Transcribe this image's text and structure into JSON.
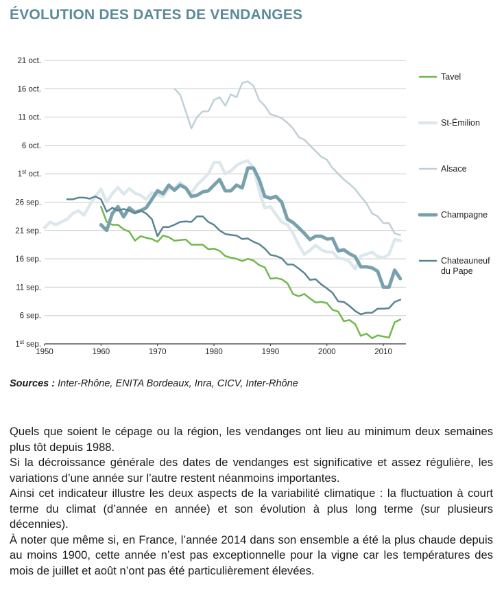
{
  "title": "ÉVOLUTION DES DATES DE VENDANGES",
  "chart_data": {
    "type": "line",
    "title": "ÉVOLUTION DES DATES DE VENDANGES",
    "xlabel": "",
    "ylabel": "",
    "xlim": [
      1950,
      2014
    ],
    "ylim": [
      1,
      51
    ],
    "x_ticks": [
      1950,
      1960,
      1970,
      1980,
      1990,
      2000,
      2010
    ],
    "y_ticks": [
      {
        "value": 1,
        "label": "1",
        "sup": "st",
        "rest": " sep."
      },
      {
        "value": 6,
        "label": "6 sep."
      },
      {
        "value": 11,
        "label": "11 sep."
      },
      {
        "value": 16,
        "label": "16 sep."
      },
      {
        "value": 21,
        "label": "21 sep."
      },
      {
        "value": 26,
        "label": "26 sep."
      },
      {
        "value": 31,
        "label": "1",
        "sup": "st",
        "rest": " oct."
      },
      {
        "value": 36,
        "label": "6 oct."
      },
      {
        "value": 41,
        "label": "11 oct."
      },
      {
        "value": 46,
        "label": "16 oct."
      },
      {
        "value": 51,
        "label": "21 oct."
      }
    ],
    "series": [
      {
        "name": "Tavel",
        "color": "#6fb84b",
        "width": 2.5,
        "points": [
          [
            1960,
            25.2
          ],
          [
            1961,
            22.5
          ],
          [
            1962,
            22
          ],
          [
            1963,
            22
          ],
          [
            1964,
            21.2
          ],
          [
            1965,
            20.8
          ],
          [
            1966,
            19.2
          ],
          [
            1967,
            20
          ],
          [
            1968,
            19.7
          ],
          [
            1969,
            19.5
          ],
          [
            1970,
            19
          ],
          [
            1971,
            20.1
          ],
          [
            1972,
            19.8
          ],
          [
            1973,
            19.2
          ],
          [
            1974,
            19.3
          ],
          [
            1975,
            19.4
          ],
          [
            1976,
            18.5
          ],
          [
            1977,
            18.5
          ],
          [
            1978,
            18.5
          ],
          [
            1979,
            17.7
          ],
          [
            1980,
            17.8
          ],
          [
            1981,
            17.4
          ],
          [
            1982,
            16.5
          ],
          [
            1983,
            16.2
          ],
          [
            1984,
            16
          ],
          [
            1985,
            15.6
          ],
          [
            1986,
            16
          ],
          [
            1987,
            15.7
          ],
          [
            1988,
            14.9
          ],
          [
            1989,
            14.5
          ],
          [
            1990,
            12.5
          ],
          [
            1991,
            12.6
          ],
          [
            1992,
            12.4
          ],
          [
            1993,
            11.7
          ],
          [
            1994,
            9.8
          ],
          [
            1995,
            9.4
          ],
          [
            1996,
            9.8
          ],
          [
            1997,
            9
          ],
          [
            1998,
            8.3
          ],
          [
            1999,
            8.4
          ],
          [
            2000,
            8.2
          ],
          [
            2001,
            7
          ],
          [
            2002,
            6.7
          ],
          [
            2003,
            5
          ],
          [
            2004,
            5.2
          ],
          [
            2005,
            4.5
          ],
          [
            2006,
            2.4
          ],
          [
            2007,
            2.8
          ],
          [
            2008,
            2
          ],
          [
            2009,
            2.5
          ],
          [
            2010,
            2.3
          ],
          [
            2011,
            2.1
          ],
          [
            2012,
            4.8
          ],
          [
            2013,
            5.3
          ]
        ]
      },
      {
        "name": "St-Émilion",
        "color": "#dde8ec",
        "width": 4.5,
        "points": [
          [
            1950,
            21.5
          ],
          [
            1951,
            22.5
          ],
          [
            1952,
            22
          ],
          [
            1953,
            22.5
          ],
          [
            1954,
            23
          ],
          [
            1955,
            24
          ],
          [
            1956,
            24.5
          ],
          [
            1957,
            23.7
          ],
          [
            1958,
            25.5
          ],
          [
            1959,
            27
          ],
          [
            1960,
            28.3
          ],
          [
            1961,
            26
          ],
          [
            1962,
            27.5
          ],
          [
            1963,
            28.6
          ],
          [
            1964,
            27.4
          ],
          [
            1965,
            28.4
          ],
          [
            1966,
            27.6
          ],
          [
            1967,
            27.2
          ],
          [
            1968,
            26.5
          ],
          [
            1969,
            27.7
          ],
          [
            1970,
            27.3
          ],
          [
            1971,
            27
          ],
          [
            1972,
            28.4
          ],
          [
            1973,
            28.4
          ],
          [
            1974,
            29.5
          ],
          [
            1975,
            28.5
          ],
          [
            1976,
            27.6
          ],
          [
            1977,
            29
          ],
          [
            1978,
            30
          ],
          [
            1979,
            31
          ],
          [
            1980,
            33
          ],
          [
            1981,
            33
          ],
          [
            1982,
            31
          ],
          [
            1983,
            31.5
          ],
          [
            1984,
            32.5
          ],
          [
            1985,
            33
          ],
          [
            1986,
            33.3
          ],
          [
            1987,
            32
          ],
          [
            1988,
            28
          ],
          [
            1989,
            25
          ],
          [
            1990,
            25.2
          ],
          [
            1991,
            23.8
          ],
          [
            1992,
            22.5
          ],
          [
            1993,
            22
          ],
          [
            1994,
            20.5
          ],
          [
            1995,
            18.5
          ],
          [
            1996,
            16.8
          ],
          [
            1997,
            17.5
          ],
          [
            1998,
            18.4
          ],
          [
            1999,
            17.6
          ],
          [
            2000,
            17.2
          ],
          [
            2001,
            17.2
          ],
          [
            2002,
            16.1
          ],
          [
            2003,
            16
          ],
          [
            2004,
            15.5
          ],
          [
            2005,
            14.2
          ],
          [
            2006,
            16.5
          ],
          [
            2007,
            16.8
          ],
          [
            2008,
            17.2
          ],
          [
            2009,
            16.4
          ],
          [
            2010,
            16.2
          ],
          [
            2011,
            16.8
          ],
          [
            2012,
            19.4
          ],
          [
            2013,
            19.2
          ]
        ]
      },
      {
        "name": "Alsace",
        "color": "#bfd0d7",
        "width": 2.5,
        "points": [
          [
            1973,
            46
          ],
          [
            1974,
            45
          ],
          [
            1975,
            42
          ],
          [
            1976,
            39
          ],
          [
            1977,
            41
          ],
          [
            1978,
            42
          ],
          [
            1979,
            42
          ],
          [
            1980,
            44
          ],
          [
            1981,
            44.5
          ],
          [
            1982,
            43
          ],
          [
            1983,
            45
          ],
          [
            1984,
            44.5
          ],
          [
            1985,
            47
          ],
          [
            1986,
            47.3
          ],
          [
            1987,
            46.5
          ],
          [
            1988,
            44
          ],
          [
            1989,
            43
          ],
          [
            1990,
            41.5
          ],
          [
            1991,
            41.2
          ],
          [
            1992,
            40.8
          ],
          [
            1993,
            40
          ],
          [
            1994,
            39
          ],
          [
            1995,
            37.5
          ],
          [
            1996,
            37
          ],
          [
            1997,
            36
          ],
          [
            1998,
            35
          ],
          [
            1999,
            34
          ],
          [
            2000,
            33.5
          ],
          [
            2001,
            32
          ],
          [
            2002,
            31
          ],
          [
            2003,
            30
          ],
          [
            2004,
            29.2
          ],
          [
            2005,
            28.3
          ],
          [
            2006,
            27
          ],
          [
            2007,
            25.8
          ],
          [
            2008,
            24
          ],
          [
            2009,
            23.5
          ],
          [
            2010,
            22.3
          ],
          [
            2011,
            22.3
          ],
          [
            2012,
            20.5
          ],
          [
            2013,
            20.2
          ]
        ]
      },
      {
        "name": "Champagne",
        "color": "#79a1ad",
        "width": 5,
        "points": [
          [
            1960,
            22
          ],
          [
            1961,
            21
          ],
          [
            1962,
            24
          ],
          [
            1963,
            25.2
          ],
          [
            1964,
            23.4
          ],
          [
            1965,
            25
          ],
          [
            1966,
            24.2
          ],
          [
            1967,
            24.5
          ],
          [
            1968,
            25
          ],
          [
            1969,
            26.5
          ],
          [
            1970,
            28
          ],
          [
            1971,
            27.5
          ],
          [
            1972,
            29
          ],
          [
            1973,
            28.1
          ],
          [
            1974,
            29
          ],
          [
            1975,
            28.5
          ],
          [
            1976,
            27
          ],
          [
            1977,
            27.2
          ],
          [
            1978,
            27.8
          ],
          [
            1979,
            28
          ],
          [
            1980,
            29
          ],
          [
            1981,
            30
          ],
          [
            1982,
            28
          ],
          [
            1983,
            28
          ],
          [
            1984,
            29
          ],
          [
            1985,
            28.5
          ],
          [
            1986,
            32
          ],
          [
            1987,
            32
          ],
          [
            1988,
            30
          ],
          [
            1989,
            27
          ],
          [
            1990,
            26.7
          ],
          [
            1991,
            27
          ],
          [
            1992,
            26
          ],
          [
            1993,
            23
          ],
          [
            1994,
            22.4
          ],
          [
            1995,
            21.5
          ],
          [
            1996,
            20.5
          ],
          [
            1997,
            19.4
          ],
          [
            1998,
            20
          ],
          [
            1999,
            20
          ],
          [
            2000,
            19.5
          ],
          [
            2001,
            19.6
          ],
          [
            2002,
            17.4
          ],
          [
            2003,
            17.6
          ],
          [
            2004,
            16.9
          ],
          [
            2005,
            16.4
          ],
          [
            2006,
            14.6
          ],
          [
            2007,
            14.6
          ],
          [
            2008,
            14.4
          ],
          [
            2009,
            13.8
          ],
          [
            2010,
            11
          ],
          [
            2011,
            11
          ],
          [
            2012,
            14
          ],
          [
            2013,
            12.5
          ]
        ]
      },
      {
        "name": "Chateauneuf du Pape",
        "color": "#5a8392",
        "width": 2.5,
        "points": [
          [
            1954,
            26.5
          ],
          [
            1955,
            26.5
          ],
          [
            1956,
            26.8
          ],
          [
            1957,
            26.8
          ],
          [
            1958,
            26.6
          ],
          [
            1959,
            27
          ],
          [
            1960,
            26.5
          ],
          [
            1961,
            24.3
          ],
          [
            1962,
            25
          ],
          [
            1963,
            24.5
          ],
          [
            1964,
            24.8
          ],
          [
            1965,
            24.5
          ],
          [
            1966,
            24
          ],
          [
            1967,
            24.5
          ],
          [
            1968,
            24
          ],
          [
            1969,
            23
          ],
          [
            1970,
            20
          ],
          [
            1971,
            21.6
          ],
          [
            1972,
            21.6
          ],
          [
            1973,
            22
          ],
          [
            1974,
            22.5
          ],
          [
            1975,
            22.6
          ],
          [
            1976,
            22.5
          ],
          [
            1977,
            23.5
          ],
          [
            1978,
            23.5
          ],
          [
            1979,
            22.5
          ],
          [
            1980,
            22
          ],
          [
            1981,
            21
          ],
          [
            1982,
            20.4
          ],
          [
            1983,
            20.2
          ],
          [
            1984,
            20.1
          ],
          [
            1985,
            19.5
          ],
          [
            1986,
            19.6
          ],
          [
            1987,
            19
          ],
          [
            1988,
            18.6
          ],
          [
            1989,
            17.8
          ],
          [
            1990,
            16.7
          ],
          [
            1991,
            16.5
          ],
          [
            1992,
            16.1
          ],
          [
            1993,
            15
          ],
          [
            1994,
            15
          ],
          [
            1995,
            14.3
          ],
          [
            1996,
            13.5
          ],
          [
            1997,
            12.3
          ],
          [
            1998,
            12.4
          ],
          [
            1999,
            11.5
          ],
          [
            2000,
            10.8
          ],
          [
            2001,
            10
          ],
          [
            2002,
            8.5
          ],
          [
            2003,
            8.4
          ],
          [
            2004,
            7.7
          ],
          [
            2005,
            6.8
          ],
          [
            2006,
            6.2
          ],
          [
            2007,
            6.5
          ],
          [
            2008,
            6.5
          ],
          [
            2009,
            7.2
          ],
          [
            2010,
            7.2
          ],
          [
            2011,
            7.3
          ],
          [
            2012,
            8.4
          ],
          [
            2013,
            8.8
          ]
        ]
      }
    ],
    "legend": {
      "position": "right",
      "entries": [
        {
          "series": "Tavel",
          "lines": [
            "Tavel"
          ]
        },
        {
          "series": "St-Émilion",
          "lines": [
            "St-Émilion"
          ]
        },
        {
          "series": "Alsace",
          "lines": [
            "Alsace"
          ]
        },
        {
          "series": "Champagne",
          "lines": [
            "Champagne"
          ]
        },
        {
          "series": "Chateauneuf du Pape",
          "lines": [
            "Chateauneuf",
            "du Pape"
          ]
        }
      ]
    }
  },
  "sources": {
    "label": "Sources :",
    "text": " Inter-Rhône, ENITA Bordeaux, Inra, CICV, Inter-Rhône"
  },
  "body": {
    "paragraphs": [
      "Quels que soient le cépage ou la région, les vendanges ont lieu au minimum deux semaines plus tôt depuis 1988.",
      "Si la décroissance générale des dates de vendanges est significative et assez régulière, les variations d’une année sur l’autre restent néanmoins importantes.",
      "Ainsi cet indicateur illustre les deux aspects de la variabilité climatique : la fluctuation à court terme du climat (d’année en année) et son évolution à plus long terme (sur plusieurs décennies).",
      "À noter que même si, en France, l’année 2014 dans son ensemble a été la plus chaude depuis au moins 1900, cette année n’est pas exceptionnelle pour la vigne car les températures des mois de juillet et août n’ont pas été particulièrement  élevées."
    ]
  }
}
